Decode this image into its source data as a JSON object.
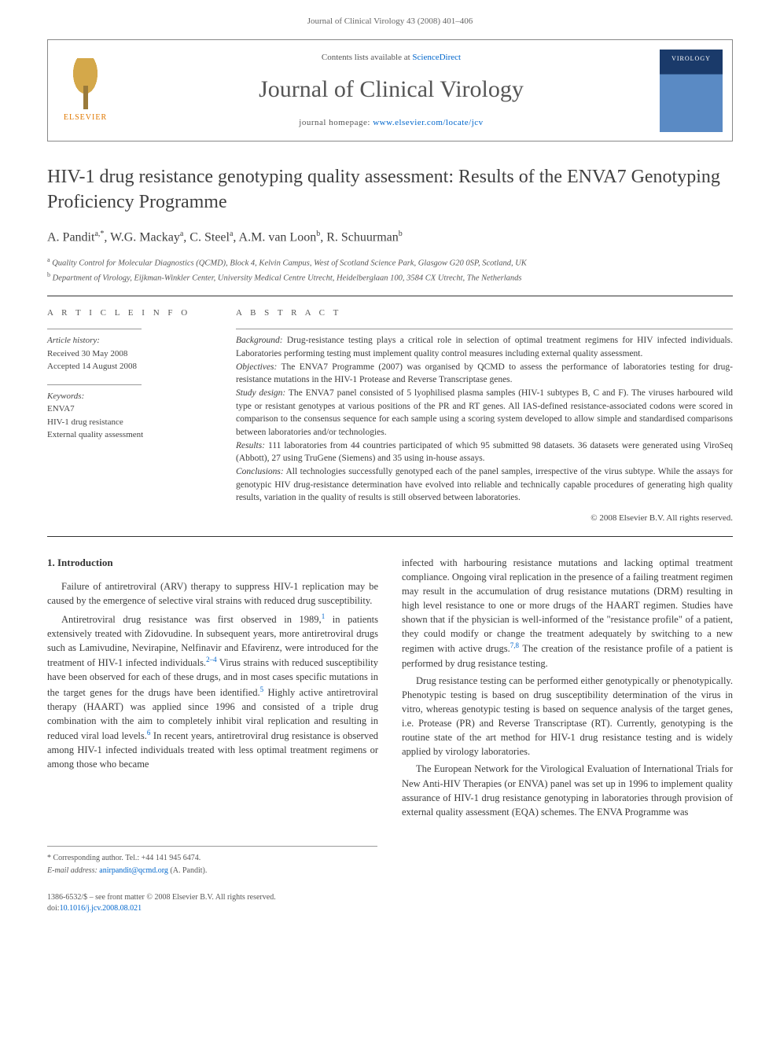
{
  "header": {
    "citation": "Journal of Clinical Virology 43 (2008) 401–406"
  },
  "banner": {
    "publisher": "ELSEVIER",
    "contents_prefix": "Contents lists available at ",
    "contents_link": "ScienceDirect",
    "journal_title": "Journal of Clinical Virology",
    "homepage_prefix": "journal homepage: ",
    "homepage_url": "www.elsevier.com/locate/jcv"
  },
  "article": {
    "title": "HIV-1 drug resistance genotyping quality assessment: Results of the ENVA7 Genotyping Proficiency Programme",
    "authors_html": "A. Pandit<sup>a,*</sup>, W.G. Mackay<sup>a</sup>, C. Steel<sup>a</sup>, A.M. van Loon<sup>b</sup>, R. Schuurman<sup>b</sup>",
    "affiliations": [
      {
        "sup": "a",
        "text": "Quality Control for Molecular Diagnostics (QCMD), Block 4, Kelvin Campus, West of Scotland Science Park, Glasgow G20 0SP, Scotland, UK"
      },
      {
        "sup": "b",
        "text": "Department of Virology, Eijkman-Winkler Center, University Medical Centre Utrecht, Heidelberglaan 100, 3584 CX Utrecht, The Netherlands"
      }
    ]
  },
  "info": {
    "heading": "A R T I C L E   I N F O",
    "history_label": "Article history:",
    "received": "Received 30 May 2008",
    "accepted": "Accepted 14 August 2008",
    "keywords_label": "Keywords:",
    "keywords": [
      "ENVA7",
      "HIV-1 drug resistance",
      "External quality assessment"
    ]
  },
  "abstract": {
    "heading": "A B S T R A C T",
    "segments": [
      {
        "label": "Background:",
        "text": " Drug-resistance testing plays a critical role in selection of optimal treatment regimens for HIV infected individuals. Laboratories performing testing must implement quality control measures including external quality assessment."
      },
      {
        "label": "Objectives:",
        "text": " The ENVA7 Programme (2007) was organised by QCMD to assess the performance of laboratories testing for drug-resistance mutations in the HIV-1 Protease and Reverse Transcriptase genes."
      },
      {
        "label": "Study design:",
        "text": " The ENVA7 panel consisted of 5 lyophilised plasma samples (HIV-1 subtypes B, C and F). The viruses harboured wild type or resistant genotypes at various positions of the PR and RT genes. All IAS-defined resistance-associated codons were scored in comparison to the consensus sequence for each sample using a scoring system developed to allow simple and standardised comparisons between laboratories and/or technologies."
      },
      {
        "label": "Results:",
        "text": " 111 laboratories from 44 countries participated of which 95 submitted 98 datasets. 36 datasets were generated using ViroSeq (Abbott), 27 using TruGene (Siemens) and 35 using in-house assays."
      },
      {
        "label": "Conclusions:",
        "text": " All technologies successfully genotyped each of the panel samples, irrespective of the virus subtype. While the assays for genotypic HIV drug-resistance determination have evolved into reliable and technically capable procedures of generating high quality results, variation in the quality of results is still observed between laboratories."
      }
    ],
    "copyright": "© 2008 Elsevier B.V. All rights reserved."
  },
  "body": {
    "section_number": "1.",
    "section_title": "Introduction",
    "col1_paras": [
      "Failure of antiretroviral (ARV) therapy to suppress HIV-1 replication may be caused by the emergence of selective viral strains with reduced drug susceptibility.",
      "Antiretroviral drug resistance was first observed in 1989,¹ in patients extensively treated with Zidovudine. In subsequent years, more antiretroviral drugs such as Lamivudine, Nevirapine, Nelfinavir and Efavirenz, were introduced for the treatment of HIV-1 infected individuals.²⁻⁴ Virus strains with reduced susceptibility have been observed for each of these drugs, and in most cases specific mutations in the target genes for the drugs have been identified.⁵ Highly active antiretroviral therapy (HAART) was applied since 1996 and consisted of a triple drug combination with the aim to completely inhibit viral replication and resulting in reduced viral load levels.⁶ In recent years, antiretroviral drug resistance is observed among HIV-1 infected individuals treated with less optimal treatment regimens or among those who became"
    ],
    "col2_paras": [
      "infected with harbouring resistance mutations and lacking optimal treatment compliance. Ongoing viral replication in the presence of a failing treatment regimen may result in the accumulation of drug resistance mutations (DRM) resulting in high level resistance to one or more drugs of the HAART regimen. Studies have shown that if the physician is well-informed of the \"resistance profile\" of a patient, they could modify or change the treatment adequately by switching to a new regimen with active drugs.⁷,⁸ The creation of the resistance profile of a patient is performed by drug resistance testing.",
      "Drug resistance testing can be performed either genotypically or phenotypically. Phenotypic testing is based on drug susceptibility determination of the virus in vitro, whereas genotypic testing is based on sequence analysis of the target genes, i.e. Protease (PR) and Reverse Transcriptase (RT). Currently, genotyping is the routine state of the art method for HIV-1 drug resistance testing and is widely applied by virology laboratories.",
      "The European Network for the Virological Evaluation of International Trials for New Anti-HIV Therapies (or ENVA) panel was set up in 1996 to implement quality assurance of HIV-1 drug resistance genotyping in laboratories through provision of external quality assessment (EQA) schemes. The ENVA Programme was"
    ]
  },
  "footer": {
    "corr_label": "* Corresponding author. Tel.: +44 141 945 6474.",
    "email_label": "E-mail address:",
    "email": "anirpandit@qcmd.org",
    "email_suffix": "(A. Pandit).",
    "issn": "1386-6532/$ – see front matter © 2008 Elsevier B.V. All rights reserved.",
    "doi_label": "doi:",
    "doi": "10.1016/j.jcv.2008.08.021"
  }
}
